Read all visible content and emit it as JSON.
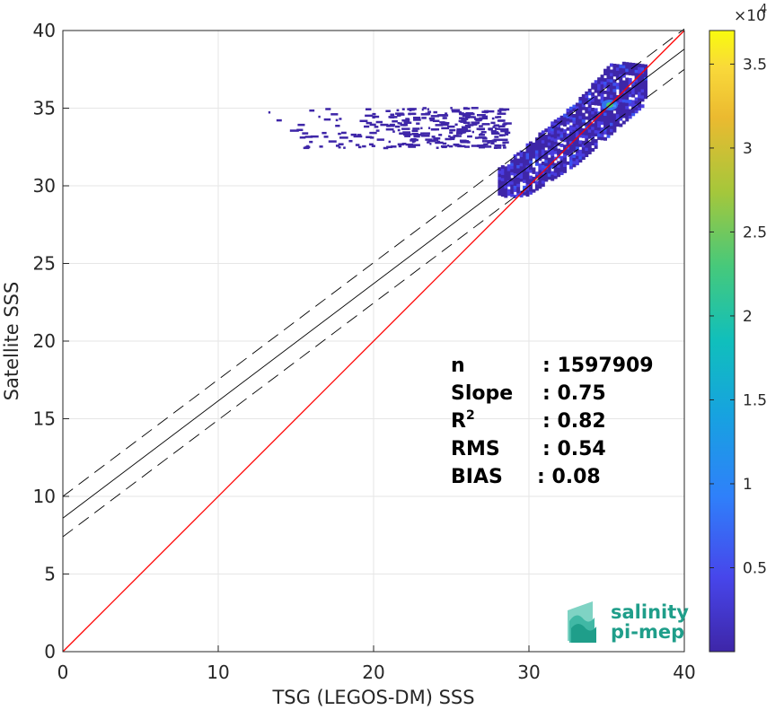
{
  "chart_data": {
    "type": "heatmap",
    "xlabel": "TSG (LEGOS-DM) SSS",
    "ylabel": "Satellite SSS",
    "xlim": [
      0,
      40
    ],
    "ylim": [
      0,
      40
    ],
    "x_ticks": [
      "0",
      "10",
      "20",
      "30",
      "40"
    ],
    "y_ticks": [
      "0",
      "5",
      "10",
      "15",
      "20",
      "25",
      "30",
      "35",
      "40"
    ],
    "grid": true,
    "colormap": "parula",
    "colorbar": {
      "range": [
        0,
        3.7
      ],
      "multiplier": "×10",
      "exponent": "4",
      "ticks": [
        "0.5",
        "1",
        "1.5",
        "2",
        "2.5",
        "3",
        "3.5"
      ],
      "tick_values": [
        0.5,
        1,
        1.5,
        2,
        2.5,
        3,
        3.5
      ]
    },
    "lines": [
      {
        "name": "1:1",
        "color": "#ff0000",
        "style": "solid",
        "x": [
          0,
          40
        ],
        "y": [
          0,
          40
        ]
      },
      {
        "name": "fit",
        "color": "#000000",
        "style": "solid",
        "x": [
          0,
          40
        ],
        "y": [
          8.6,
          38.8
        ]
      },
      {
        "name": "fit+std",
        "color": "#000000",
        "style": "dashed",
        "x": [
          0,
          40
        ],
        "y": [
          10.0,
          40.1
        ]
      },
      {
        "name": "fit-std",
        "color": "#000000",
        "style": "dashed",
        "x": [
          0,
          40
        ],
        "y": [
          7.4,
          37.5
        ]
      }
    ],
    "density_regions": [
      {
        "x": [
          28.0,
          37.5
        ],
        "y": [
          29.5,
          37.5
        ],
        "level": "high"
      },
      {
        "x": [
          13.0,
          28.0
        ],
        "y": [
          32.5,
          35.2
        ],
        "level": "sparse"
      }
    ],
    "peak": {
      "x": 35.2,
      "y": 35.2
    }
  },
  "stats": {
    "lines": [
      {
        "label": "n",
        "value": ": 1597909"
      },
      {
        "label": "Slope",
        "value": ": 0.75"
      },
      {
        "label": "R",
        "sup": "2",
        "value": ": 0.82"
      },
      {
        "label": "RMS",
        "value": ": 0.54"
      },
      {
        "label": "BIAS",
        "value": ": 0.08"
      }
    ]
  },
  "logo": {
    "line1": "salinity",
    "line2": "pi-mep",
    "icon": "wave-layers-icon",
    "color": "#1f9e8a"
  }
}
